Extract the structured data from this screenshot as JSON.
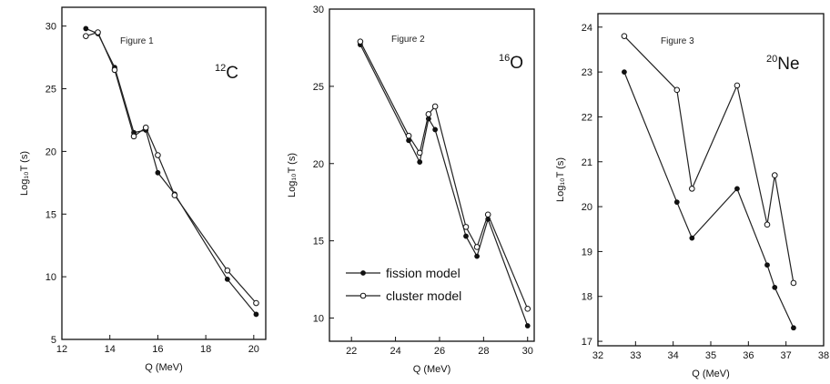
{
  "chart_data": [
    {
      "type": "line",
      "figure_label": "Figure 1",
      "nucleus": {
        "mass": "12",
        "symbol": "C"
      },
      "xlabel": "Q (MeV)",
      "ylabel": "Log₁₀T (s)",
      "xlim": [
        12,
        20.5
      ],
      "ylim": [
        5,
        31.5
      ],
      "xticks": [
        12,
        14,
        16,
        18,
        20
      ],
      "yticks": [
        5,
        10,
        15,
        20,
        25,
        30
      ],
      "series": [
        {
          "name": "fission model",
          "marker": "filled",
          "x": [
            13.0,
            13.5,
            14.2,
            15.0,
            15.5,
            16.0,
            16.7,
            18.9,
            20.1
          ],
          "y": [
            29.8,
            29.4,
            26.7,
            21.5,
            21.7,
            18.3,
            16.6,
            9.8,
            7.0
          ]
        },
        {
          "name": "cluster model",
          "marker": "open",
          "x": [
            13.0,
            13.5,
            14.2,
            15.0,
            15.5,
            16.0,
            16.7,
            18.9,
            20.1
          ],
          "y": [
            29.2,
            29.5,
            26.5,
            21.2,
            21.9,
            19.7,
            16.5,
            10.5,
            7.9
          ]
        }
      ]
    },
    {
      "type": "line",
      "figure_label": "Figure 2",
      "nucleus": {
        "mass": "16",
        "symbol": "O"
      },
      "xlabel": "Q (MeV)",
      "ylabel": "Log₁₀T (s)",
      "xlim": [
        21,
        30.3
      ],
      "ylim": [
        8.5,
        30
      ],
      "xticks": [
        22,
        24,
        26,
        28,
        30
      ],
      "yticks": [
        10,
        15,
        20,
        25,
        30
      ],
      "legend": {
        "position": "lower-left",
        "entries": [
          "fission model",
          "cluster model"
        ]
      },
      "series": [
        {
          "name": "fission model",
          "marker": "filled",
          "x": [
            22.4,
            24.6,
            25.1,
            25.5,
            25.8,
            27.2,
            27.7,
            28.2,
            30.0
          ],
          "y": [
            27.7,
            21.5,
            20.1,
            22.9,
            22.2,
            15.3,
            14.0,
            16.4,
            9.5
          ]
        },
        {
          "name": "cluster model",
          "marker": "open",
          "x": [
            22.4,
            24.6,
            25.1,
            25.5,
            25.8,
            27.2,
            27.7,
            28.2,
            30.0
          ],
          "y": [
            27.9,
            21.8,
            20.7,
            23.2,
            23.7,
            15.9,
            14.6,
            16.7,
            10.6
          ]
        }
      ]
    },
    {
      "type": "line",
      "figure_label": "Figure 3",
      "nucleus": {
        "mass": "20",
        "symbol": "Ne"
      },
      "xlabel": "Q (MeV)",
      "ylabel": "Log₁₀T (s)",
      "xlim": [
        32,
        38
      ],
      "ylim": [
        16.9,
        24.3
      ],
      "xticks": [
        32,
        33,
        34,
        35,
        36,
        37,
        38
      ],
      "yticks": [
        17,
        18,
        19,
        20,
        21,
        22,
        23,
        24
      ],
      "series": [
        {
          "name": "fission model",
          "marker": "filled",
          "x": [
            32.7,
            34.1,
            34.5,
            35.7,
            36.5,
            36.7,
            37.2
          ],
          "y": [
            23.0,
            20.1,
            19.3,
            20.4,
            18.7,
            18.2,
            17.3
          ]
        },
        {
          "name": "cluster model",
          "marker": "open",
          "x": [
            32.7,
            34.1,
            34.5,
            35.7,
            36.5,
            36.7,
            37.2
          ],
          "y": [
            23.8,
            22.6,
            20.4,
            22.7,
            19.6,
            20.7,
            18.3
          ]
        }
      ]
    }
  ]
}
